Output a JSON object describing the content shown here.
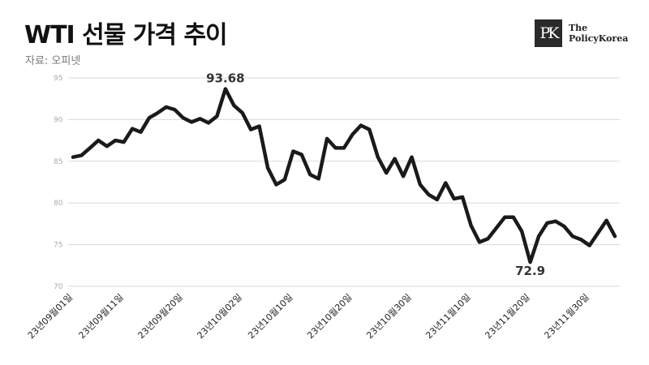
{
  "header": {
    "title": "WTI 선물 가격 추이",
    "source": "자료: 오피넷"
  },
  "logo": {
    "mark": "PK",
    "line1": "The",
    "line2": "PolicyKorea"
  },
  "colors": {
    "line": "#1a1a1a",
    "grid": "#d9d9d9",
    "tick": "#aaaaaa",
    "axis_label": "#222222"
  },
  "chart_data": {
    "type": "line",
    "ylim": [
      70,
      95
    ],
    "yticks": [
      70,
      75,
      80,
      85,
      90,
      95
    ],
    "grid": true,
    "x_tick_labels": [
      "23년09월01일",
      "23년09월11일",
      "23년09월20일",
      "23년10월02일",
      "23년10월10일",
      "23년10월20일",
      "23년10월30일",
      "23년11월10일",
      "23년11월20일",
      "23년11월30일"
    ],
    "x_tick_indices": [
      0,
      6,
      13,
      20,
      26,
      33,
      40,
      47,
      54,
      61
    ],
    "series": [
      {
        "values": [
          85.5,
          85.7,
          86.6,
          87.5,
          86.8,
          87.5,
          87.3,
          88.9,
          88.5,
          90.2,
          90.8,
          91.5,
          91.2,
          90.2,
          89.7,
          90.1,
          89.6,
          90.4,
          93.68,
          91.7,
          90.8,
          88.8,
          89.2,
          84.2,
          82.2,
          82.8,
          86.2,
          85.8,
          83.4,
          82.9,
          87.7,
          86.6,
          86.6,
          88.2,
          89.3,
          88.8,
          85.5,
          83.6,
          85.3,
          83.2,
          85.5,
          82.2,
          81.0,
          80.4,
          82.4,
          80.5,
          80.7,
          77.3,
          75.3,
          75.7,
          77.0,
          78.3,
          78.3,
          76.6,
          72.9,
          76.0,
          77.6,
          77.8,
          77.2,
          76.0,
          75.6,
          74.9,
          76.4,
          77.9,
          76.0
        ]
      }
    ],
    "annotations": [
      {
        "index": 18,
        "label": "93.68"
      },
      {
        "index": 54,
        "label": "72.9"
      }
    ]
  }
}
